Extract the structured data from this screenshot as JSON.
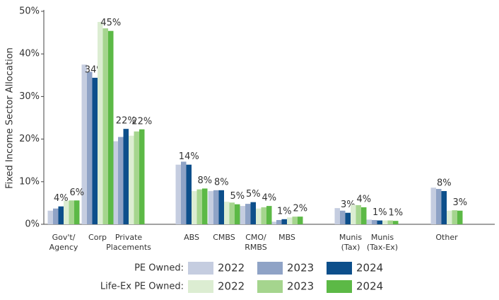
{
  "chart_data": {
    "type": "bar",
    "y_label": "Fixed Income Sector Allocation",
    "categories": [
      "Gov't/\nAgency",
      "Corp",
      "Private\nPlacements",
      "ABS",
      "CMBS",
      "CMO/\nRMBS",
      "MBS",
      "Munis\n(Tax)",
      "Munis\n(Tax-Ex)",
      "Other"
    ],
    "legend_rows": [
      "PE Owned:",
      "Life-Ex PE Owned:"
    ],
    "series": [
      {
        "name": "2022",
        "color": "#c5cde0",
        "values": [
          3.2,
          37.5,
          19.5,
          14,
          7.8,
          4.3,
          0.6,
          3.8,
          1.1,
          8.6
        ]
      },
      {
        "name": "2023",
        "color": "#8fa3c6",
        "values": [
          3.7,
          35.8,
          20.5,
          14.7,
          8,
          4.8,
          1.0,
          3.2,
          1.0,
          8.3
        ]
      },
      {
        "name": "2024",
        "color": "#0d4f8b",
        "values": [
          4.2,
          34.4,
          22.4,
          14.0,
          8.0,
          5.2,
          1.2,
          2.7,
          0.9,
          7.8
        ],
        "value_labels": [
          "4%",
          "34%",
          "22%",
          "14%",
          "8%",
          "5%",
          "1%",
          "3%",
          "1%",
          "8%"
        ]
      },
      {
        "name": "2022",
        "color": "#dcedd2",
        "values": [
          5.5,
          47.5,
          20.8,
          7.8,
          5.3,
          3.7,
          1.6,
          4.6,
          0.9,
          3.2
        ]
      },
      {
        "name": "2023",
        "color": "#a5d58e",
        "values": [
          5.6,
          46,
          21.8,
          8.2,
          5.1,
          4,
          1.8,
          4.5,
          0.9,
          3.3
        ]
      },
      {
        "name": "2024",
        "color": "#5cb946",
        "values": [
          5.6,
          45.4,
          22.3,
          8.4,
          4.7,
          4.3,
          1.8,
          4.0,
          0.8,
          3.2
        ],
        "value_labels": [
          "6%",
          "45%",
          "22%",
          "8%",
          "5%",
          "4%",
          "2%",
          "4%",
          "1%",
          "3%"
        ]
      }
    ],
    "ylim": [
      0,
      50
    ],
    "yticks": [
      {
        "value": 0,
        "label": "0%"
      },
      {
        "value": 10,
        "label": "10%"
      },
      {
        "value": 20,
        "label": "20%"
      },
      {
        "value": 30,
        "label": "30%"
      },
      {
        "value": 40,
        "label": "40%"
      },
      {
        "value": 50,
        "label": "50%"
      }
    ],
    "grid": false
  }
}
